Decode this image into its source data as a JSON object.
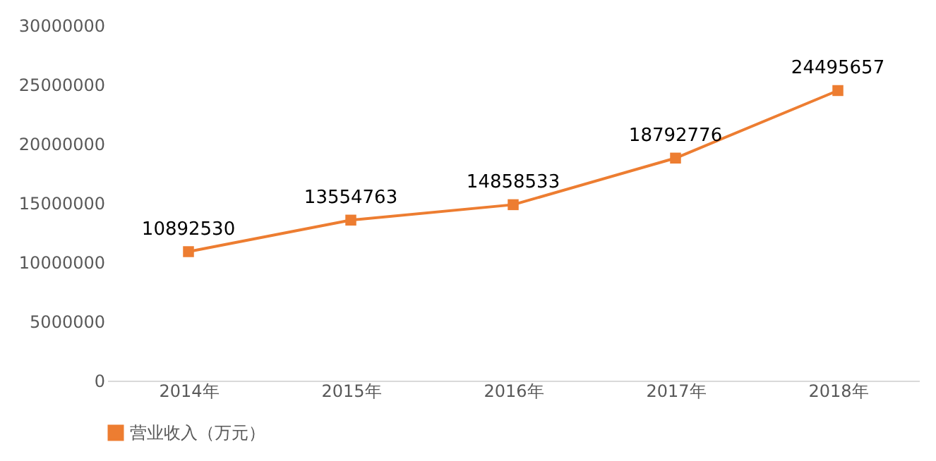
{
  "chart_data": {
    "type": "line",
    "categories": [
      "2014年",
      "2015年",
      "2016年",
      "2017年",
      "2018年"
    ],
    "series": [
      {
        "name": "营业收入（万元）",
        "color": "#ed7d31",
        "values": [
          10892530,
          13554763,
          14858533,
          18792776,
          24495657
        ]
      }
    ],
    "ylim": [
      0,
      30000000
    ],
    "yticks": [
      0,
      5000000,
      10000000,
      15000000,
      20000000,
      25000000,
      30000000
    ],
    "grid": false,
    "legend": "bottom",
    "marker": "square",
    "line_style": "solid",
    "data_labels": true
  }
}
